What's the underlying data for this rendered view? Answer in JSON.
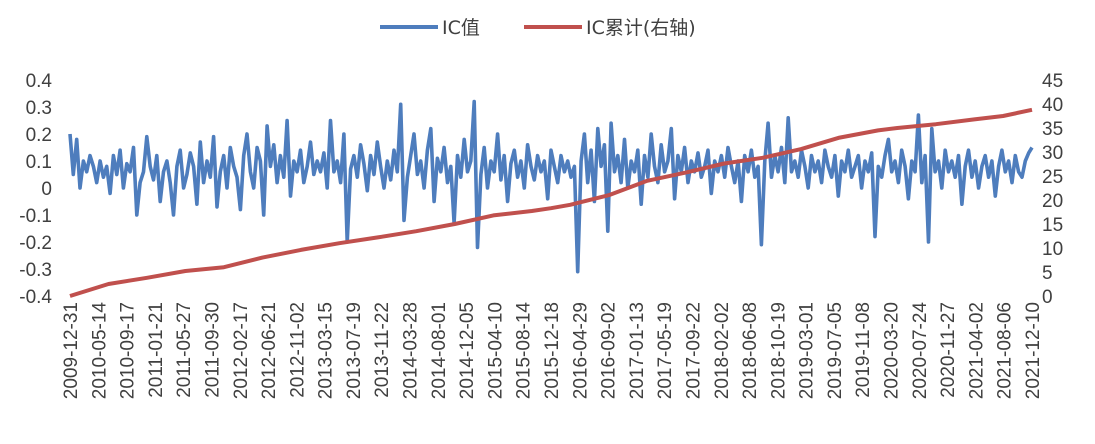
{
  "chart_data": {
    "type": "line",
    "title": "",
    "xlabel": "",
    "ylabel": "",
    "x_tick_labels": [
      "2009-12-31",
      "2010-05-14",
      "2010-09-17",
      "2011-01-21",
      "2011-05-27",
      "2011-09-30",
      "2012-02-17",
      "2012-06-21",
      "2012-11-02",
      "2013-03-15",
      "2013-07-19",
      "2013-11-22",
      "2014-03-28",
      "2014-08-01",
      "2014-12-05",
      "2015-04-10",
      "2015-08-14",
      "2015-12-18",
      "2016-04-29",
      "2016-09-02",
      "2017-01-13",
      "2017-05-19",
      "2017-09-22",
      "2018-02-02",
      "2018-06-08",
      "2018-10-19",
      "2019-03-01",
      "2019-07-05",
      "2019-11-08",
      "2020-03-20",
      "2020-07-24",
      "2020-11-27",
      "2021-04-02",
      "2021-08-06",
      "2021-12-10"
    ],
    "y_left": {
      "min": -0.4,
      "max": 0.4,
      "step": 0.1,
      "tick_labels": [
        "-0.4",
        "-0.3",
        "-0.2",
        "-0.1",
        "0",
        "0.1",
        "0.2",
        "0.3",
        "0.4"
      ]
    },
    "y_right": {
      "min": 0,
      "max": 45,
      "step": 5,
      "tick_labels": [
        "0",
        "5",
        "10",
        "15",
        "20",
        "25",
        "30",
        "35",
        "40",
        "45"
      ]
    },
    "legend_position": "top-center",
    "grid": false,
    "series": [
      {
        "name": "IC值",
        "axis": "left",
        "color": "#4e7dbd",
        "values": [
          0.2,
          0.05,
          0.18,
          0.0,
          0.1,
          0.06,
          0.12,
          0.08,
          0.02,
          0.1,
          0.04,
          0.08,
          -0.02,
          0.12,
          0.05,
          0.14,
          0.0,
          0.09,
          0.06,
          0.15,
          -0.1,
          0.02,
          0.06,
          0.19,
          0.08,
          0.03,
          0.12,
          -0.05,
          0.06,
          0.1,
          0.02,
          -0.1,
          0.08,
          0.14,
          0.0,
          0.05,
          0.13,
          0.08,
          -0.06,
          0.17,
          0.02,
          0.1,
          0.04,
          0.19,
          -0.07,
          0.06,
          0.12,
          0.0,
          0.15,
          0.08,
          0.04,
          -0.08,
          0.12,
          0.2,
          0.06,
          0.0,
          0.15,
          0.1,
          -0.1,
          0.23,
          0.08,
          0.16,
          0.02,
          0.12,
          0.04,
          0.25,
          -0.03,
          0.1,
          0.06,
          0.14,
          0.02,
          0.08,
          0.17,
          0.05,
          0.1,
          0.06,
          0.13,
          0.0,
          0.25,
          0.06,
          0.1,
          0.02,
          0.2,
          -0.2,
          0.07,
          0.12,
          0.04,
          0.16,
          0.09,
          -0.01,
          0.12,
          0.05,
          0.17,
          0.08,
          0.0,
          0.1,
          0.03,
          0.14,
          0.06,
          0.31,
          -0.12,
          0.04,
          0.12,
          0.2,
          0.05,
          0.1,
          0.0,
          0.14,
          0.22,
          -0.05,
          0.11,
          0.06,
          0.15,
          0.02,
          0.08,
          -0.13,
          0.12,
          0.04,
          0.18,
          0.06,
          0.1,
          0.32,
          -0.22,
          0.05,
          0.15,
          0.0,
          0.1,
          0.06,
          0.2,
          0.03,
          0.12,
          -0.05,
          0.09,
          0.14,
          0.04,
          0.1,
          0.0,
          0.16,
          0.08,
          0.03,
          0.12,
          0.06,
          0.1,
          -0.04,
          0.14,
          0.08,
          0.02,
          0.12,
          0.06,
          0.1,
          0.04,
          0.08,
          -0.31,
          0.1,
          0.2,
          0.02,
          0.14,
          -0.05,
          0.22,
          0.08,
          0.16,
          -0.16,
          0.24,
          0.06,
          0.12,
          0.02,
          0.18,
          0.0,
          0.1,
          0.06,
          0.14,
          -0.06,
          0.12,
          0.04,
          0.2,
          0.08,
          0.02,
          0.16,
          0.06,
          0.1,
          0.22,
          -0.04,
          0.12,
          0.06,
          0.15,
          0.02,
          0.1,
          0.06,
          0.13,
          0.04,
          0.08,
          0.14,
          -0.02,
          0.1,
          0.06,
          0.12,
          0.04,
          0.15,
          0.08,
          0.02,
          0.1,
          -0.05,
          0.12,
          0.06,
          0.14,
          0.04,
          0.08,
          -0.21,
          0.1,
          0.24,
          0.04,
          0.12,
          0.06,
          0.15,
          0.02,
          0.26,
          0.06,
          0.1,
          0.04,
          0.14,
          0.08,
          0.0,
          0.12,
          0.06,
          0.1,
          0.02,
          0.14,
          0.08,
          0.04,
          0.12,
          -0.03,
          0.1,
          0.06,
          0.14,
          0.04,
          0.08,
          0.12,
          0.0,
          0.1,
          0.06,
          0.13,
          -0.18,
          0.08,
          0.04,
          0.12,
          0.18,
          0.06,
          0.1,
          0.02,
          0.14,
          0.08,
          -0.04,
          0.1,
          0.06,
          0.27,
          0.02,
          0.12,
          -0.2,
          0.22,
          0.06,
          0.1,
          0.0,
          0.14,
          0.06,
          0.1,
          0.04,
          0.12,
          -0.06,
          0.08,
          0.14,
          0.04,
          0.1,
          0.0,
          0.08,
          0.12,
          0.04,
          0.1,
          -0.03,
          0.08,
          0.14,
          0.06,
          0.1,
          0.02,
          0.12,
          0.06,
          0.04,
          0.1,
          0.13,
          0.15
        ]
      },
      {
        "name": "IC累计(右轴)",
        "axis": "right",
        "color": "#c0504d",
        "points": [
          [
            0,
            0
          ],
          [
            0.04,
            2.5
          ],
          [
            0.08,
            3.8
          ],
          [
            0.12,
            5.2
          ],
          [
            0.16,
            6.0
          ],
          [
            0.2,
            8.0
          ],
          [
            0.24,
            9.6
          ],
          [
            0.28,
            11.0
          ],
          [
            0.32,
            12.2
          ],
          [
            0.36,
            13.5
          ],
          [
            0.4,
            15.0
          ],
          [
            0.44,
            16.8
          ],
          [
            0.48,
            17.7
          ],
          [
            0.5,
            18.3
          ],
          [
            0.52,
            19.0
          ],
          [
            0.56,
            21.0
          ],
          [
            0.6,
            24.0
          ],
          [
            0.64,
            25.7
          ],
          [
            0.68,
            27.6
          ],
          [
            0.72,
            28.8
          ],
          [
            0.76,
            30.6
          ],
          [
            0.8,
            33.0
          ],
          [
            0.84,
            34.5
          ],
          [
            0.86,
            35.0
          ],
          [
            0.9,
            35.8
          ],
          [
            0.94,
            36.8
          ],
          [
            0.97,
            37.5
          ],
          [
            1.0,
            38.8
          ]
        ]
      }
    ]
  }
}
